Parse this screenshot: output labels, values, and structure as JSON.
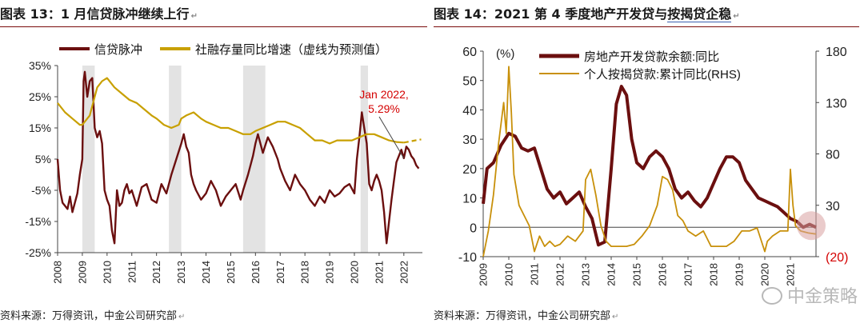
{
  "watermark": "中金策略",
  "return_mark": "↵",
  "chart_data": [
    {
      "type": "line",
      "figure_label": "图表 13：",
      "title": "1 月信贷脉冲继续上行",
      "source": "资料来源：万得资讯，中金公司研究部",
      "legend": [
        {
          "name": "信贷脉冲",
          "color": "#6b0f0f"
        },
        {
          "name": "社融存量同比增速（虚线为预测值）",
          "color": "#c8a000"
        }
      ],
      "x_ticks": [
        "2008",
        "2009",
        "2010",
        "2011",
        "2012",
        "2013",
        "2014",
        "2015",
        "2016",
        "2017",
        "2018",
        "2019",
        "2020",
        "2021",
        "2022"
      ],
      "y_ticks": [
        "35%",
        "25%",
        "15%",
        "5%",
        "-5%",
        "-15%",
        "-25%"
      ],
      "ylim": [
        -25,
        35
      ],
      "xlim": [
        2008.0,
        2022.75
      ],
      "shaded_ranges": [
        [
          2009.0,
          2009.5
        ],
        [
          2012.5,
          2013.0
        ],
        [
          2015.5,
          2016.4
        ],
        [
          2020.25,
          2020.55
        ]
      ],
      "annotation": {
        "line1": "Jan 2022,",
        "line2": "5.29%",
        "x": 2022.0,
        "y": 5.29
      },
      "series": [
        {
          "name": "信贷脉冲",
          "color": "#6b0f0f",
          "x": [
            2008.0,
            2008.1,
            2008.2,
            2008.3,
            2008.4,
            2008.5,
            2008.6,
            2008.7,
            2008.8,
            2008.9,
            2009.0,
            2009.05,
            2009.1,
            2009.2,
            2009.3,
            2009.4,
            2009.5,
            2009.6,
            2009.7,
            2009.8,
            2009.9,
            2010.0,
            2010.1,
            2010.2,
            2010.3,
            2010.4,
            2010.5,
            2010.6,
            2010.7,
            2010.8,
            2010.9,
            2011.0,
            2011.2,
            2011.4,
            2011.6,
            2011.8,
            2012.0,
            2012.2,
            2012.4,
            2012.6,
            2012.8,
            2013.0,
            2013.1,
            2013.2,
            2013.3,
            2013.4,
            2013.5,
            2013.6,
            2013.8,
            2014.0,
            2014.2,
            2014.4,
            2014.6,
            2014.8,
            2015.0,
            2015.2,
            2015.4,
            2015.5,
            2015.7,
            2015.9,
            2016.0,
            2016.1,
            2016.3,
            2016.5,
            2016.7,
            2016.9,
            2017.0,
            2017.2,
            2017.4,
            2017.6,
            2017.8,
            2018.0,
            2018.2,
            2018.4,
            2018.6,
            2018.8,
            2019.0,
            2019.2,
            2019.4,
            2019.6,
            2019.8,
            2020.0,
            2020.1,
            2020.2,
            2020.3,
            2020.4,
            2020.5,
            2020.6,
            2020.7,
            2020.8,
            2020.9,
            2021.0,
            2021.1,
            2021.2,
            2021.3,
            2021.4,
            2021.5,
            2021.6,
            2021.7,
            2021.8,
            2021.9,
            2022.0,
            2022.1,
            2022.2,
            2022.3,
            2022.4,
            2022.5,
            2022.6
          ],
          "y": [
            5,
            -5,
            -9,
            -10,
            -11,
            -7,
            -12,
            -9,
            -6,
            0,
            5,
            30,
            33,
            25,
            30,
            31,
            15,
            12,
            14,
            10,
            -5,
            -8,
            -10,
            -18,
            -22,
            -5,
            -10,
            -9,
            -5,
            -3,
            -6,
            -5,
            -10,
            -4,
            -3,
            -8,
            -9,
            -3,
            -6,
            0,
            5,
            10,
            13,
            9,
            7,
            0,
            -3,
            -5,
            -8,
            -6,
            -2,
            -5,
            -10,
            -7,
            -5,
            -3,
            -8,
            -5,
            0,
            6,
            10,
            13,
            7,
            12,
            9,
            5,
            2,
            -2,
            -5,
            0,
            -3,
            -5,
            -8,
            -10,
            -7,
            -9,
            -5,
            -7,
            -6,
            -4,
            -3,
            -6,
            5,
            12,
            20,
            15,
            10,
            -3,
            -5,
            -2,
            0,
            -2,
            -5,
            -12,
            -22,
            -15,
            -8,
            -2,
            4,
            6,
            8,
            5.29,
            9,
            8,
            6,
            5,
            3,
            2
          ]
        },
        {
          "name": "社融存量同比增速",
          "color": "#c8a000",
          "x": [
            2008.0,
            2008.3,
            2008.6,
            2008.9,
            2009.0,
            2009.3,
            2009.6,
            2009.8,
            2010.0,
            2010.3,
            2010.6,
            2010.9,
            2011.2,
            2011.5,
            2011.8,
            2012.0,
            2012.3,
            2012.6,
            2012.9,
            2013.0,
            2013.2,
            2013.5,
            2013.8,
            2014.0,
            2014.3,
            2014.6,
            2014.9,
            2015.2,
            2015.5,
            2015.8,
            2016.0,
            2016.3,
            2016.6,
            2016.9,
            2017.2,
            2017.5,
            2017.8,
            2018.1,
            2018.4,
            2018.7,
            2019.0,
            2019.3,
            2019.6,
            2019.9,
            2020.2,
            2020.5,
            2020.8,
            2021.1,
            2021.4,
            2021.7,
            2022.0
          ],
          "y": [
            23,
            20,
            18,
            16,
            16,
            19,
            28,
            30,
            31,
            28,
            26,
            24,
            23,
            21,
            19,
            18,
            16,
            15,
            16,
            18,
            19,
            20,
            18,
            17,
            16,
            15,
            15,
            14,
            13,
            13,
            14,
            15,
            16,
            17,
            17,
            16,
            15,
            13,
            11,
            11,
            10,
            11,
            11,
            11,
            12,
            13,
            13,
            12,
            11,
            10.5,
            10.3
          ]
        },
        {
          "name": "社融存量同比增速（预测）",
          "color": "#c8a000",
          "dashed": true,
          "x": [
            2022.0,
            2022.2,
            2022.4,
            2022.6,
            2022.7
          ],
          "y": [
            10.3,
            10.6,
            10.9,
            11.2,
            11.3
          ]
        }
      ]
    },
    {
      "type": "line",
      "figure_label": "图表 14：",
      "title": "2021 第 4 季度地产开发贷与",
      "title_highlight": "按揭贷企稳",
      "source": "资料来源：万得资讯，中金公司研究部",
      "unit_label": "(%)",
      "legend": [
        {
          "name": "房地产开发贷款余额:同比",
          "color": "#6b0f0f"
        },
        {
          "name": "个人按揭贷款:累计同比(RHS)",
          "color": "#c8900a"
        }
      ],
      "x_ticks": [
        "2009",
        "2010",
        "2011",
        "2012",
        "2013",
        "2014",
        "2015",
        "2016",
        "2017",
        "2018",
        "2019",
        "2020",
        "2021"
      ],
      "y_ticks": [
        "60",
        "50",
        "40",
        "30",
        "20",
        "10",
        "0",
        "-10"
      ],
      "y2_ticks": [
        "180",
        "130",
        "80",
        "30",
        "(20)"
      ],
      "ylim": [
        -10,
        60
      ],
      "y2lim": [
        -20,
        180
      ],
      "xlim": [
        2009.0,
        2022.0
      ],
      "series": [
        {
          "name": "房地产开发贷款余额:同比",
          "color": "#6b0f0f",
          "axis": "left",
          "x": [
            2009.0,
            2009.15,
            2009.4,
            2009.7,
            2010.0,
            2010.25,
            2010.5,
            2010.75,
            2011.0,
            2011.25,
            2011.5,
            2011.75,
            2012.0,
            2012.25,
            2012.5,
            2012.75,
            2013.0,
            2013.25,
            2013.5,
            2013.75,
            2014.0,
            2014.2,
            2014.4,
            2014.6,
            2014.8,
            2015.0,
            2015.25,
            2015.5,
            2015.75,
            2016.0,
            2016.25,
            2016.5,
            2016.75,
            2017.0,
            2017.25,
            2017.5,
            2017.75,
            2018.0,
            2018.25,
            2018.5,
            2018.75,
            2019.0,
            2019.25,
            2019.5,
            2019.75,
            2020.0,
            2020.25,
            2020.5,
            2020.75,
            2021.0,
            2021.25,
            2021.5,
            2021.75,
            2022.0
          ],
          "y": [
            8,
            20,
            22,
            28,
            32,
            31,
            27,
            26,
            27,
            20,
            13,
            10,
            12,
            8,
            10,
            12,
            7,
            3,
            -6,
            -5,
            20,
            42,
            48,
            45,
            30,
            22,
            20,
            24,
            26,
            24,
            20,
            13,
            10,
            12,
            9,
            7,
            10,
            15,
            20,
            24,
            24,
            22,
            16,
            13,
            10,
            9,
            8,
            7,
            5,
            3,
            2,
            0,
            1,
            0
          ]
        },
        {
          "name": "个人按揭贷款:累计同比(RHS)",
          "color": "#c8900a",
          "axis": "right",
          "x": [
            2009.0,
            2009.2,
            2009.4,
            2009.6,
            2009.8,
            2009.9,
            2010.0,
            2010.1,
            2010.2,
            2010.4,
            2010.6,
            2010.8,
            2011.0,
            2011.2,
            2011.4,
            2011.6,
            2011.8,
            2012.0,
            2012.3,
            2012.6,
            2012.9,
            2013.0,
            2013.2,
            2013.4,
            2013.6,
            2013.8,
            2014.0,
            2014.3,
            2014.6,
            2014.9,
            2015.2,
            2015.5,
            2015.8,
            2016.0,
            2016.2,
            2016.4,
            2016.6,
            2016.8,
            2017.0,
            2017.3,
            2017.6,
            2017.9,
            2018.2,
            2018.5,
            2018.8,
            2019.1,
            2019.4,
            2019.7,
            2020.0,
            2020.1,
            2020.3,
            2020.6,
            2020.9,
            2021.0,
            2021.1,
            2021.2,
            2021.4,
            2021.7,
            2022.0
          ],
          "y": [
            -20,
            5,
            40,
            90,
            130,
            100,
            165,
            120,
            60,
            30,
            20,
            10,
            -15,
            0,
            -10,
            -5,
            -10,
            -8,
            0,
            -5,
            5,
            55,
            65,
            40,
            10,
            -5,
            -10,
            -10,
            -10,
            -8,
            0,
            10,
            30,
            58,
            55,
            45,
            20,
            15,
            5,
            0,
            5,
            -10,
            -10,
            -10,
            -5,
            5,
            5,
            8,
            -15,
            -5,
            0,
            5,
            5,
            65,
            30,
            10,
            5,
            3,
            2
          ]
        }
      ]
    }
  ]
}
